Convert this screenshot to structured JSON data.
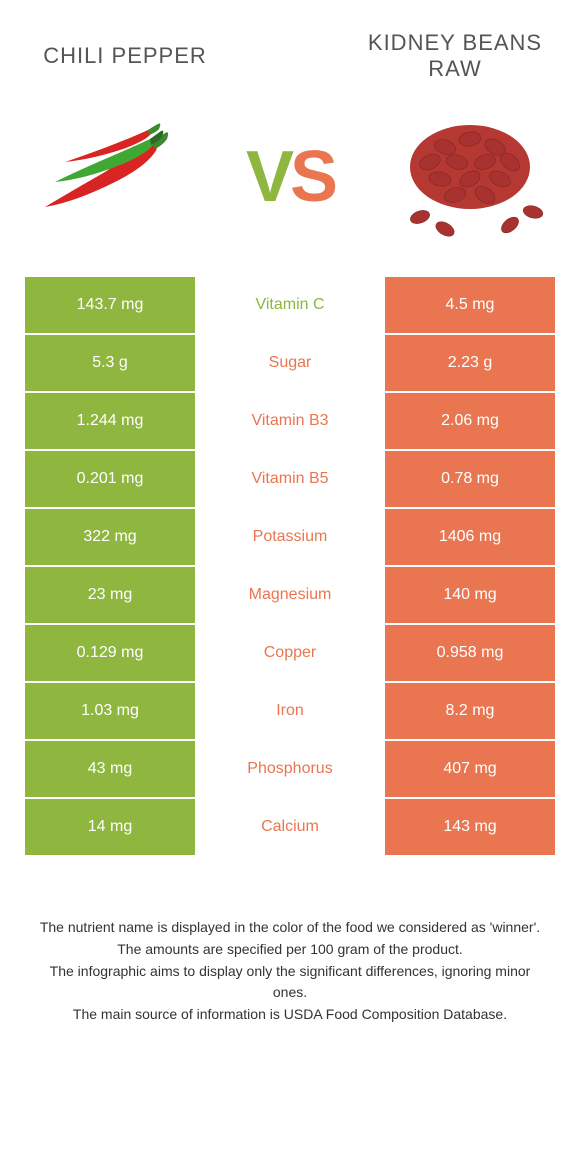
{
  "colors": {
    "left_food": "#8fb63f",
    "right_food": "#e97651",
    "text": "#555555",
    "white": "#ffffff"
  },
  "header": {
    "left_title": "Chili pepper",
    "right_title": "Kidney beans raw",
    "vs_label": "VS"
  },
  "rows": [
    {
      "left": "143.7 mg",
      "label": "Vitamin C",
      "right": "4.5 mg",
      "winner": "left"
    },
    {
      "left": "5.3 g",
      "label": "Sugar",
      "right": "2.23 g",
      "winner": "right"
    },
    {
      "left": "1.244 mg",
      "label": "Vitamin B3",
      "right": "2.06 mg",
      "winner": "right"
    },
    {
      "left": "0.201 mg",
      "label": "Vitamin B5",
      "right": "0.78 mg",
      "winner": "right"
    },
    {
      "left": "322 mg",
      "label": "Potassium",
      "right": "1406 mg",
      "winner": "right"
    },
    {
      "left": "23 mg",
      "label": "Magnesium",
      "right": "140 mg",
      "winner": "right"
    },
    {
      "left": "0.129 mg",
      "label": "Copper",
      "right": "0.958 mg",
      "winner": "right"
    },
    {
      "left": "1.03 mg",
      "label": "Iron",
      "right": "8.2 mg",
      "winner": "right"
    },
    {
      "left": "43 mg",
      "label": "Phosphorus",
      "right": "407 mg",
      "winner": "right"
    },
    {
      "left": "14 mg",
      "label": "Calcium",
      "right": "143 mg",
      "winner": "right"
    }
  ],
  "footer": {
    "line1": "The nutrient name is displayed in the color of the food we considered as 'winner'.",
    "line2": "The amounts are specified per 100 gram of the product.",
    "line3": "The infographic aims to display only the significant differences, ignoring minor ones.",
    "line4": "The main source of information is USDA Food Composition Database."
  }
}
